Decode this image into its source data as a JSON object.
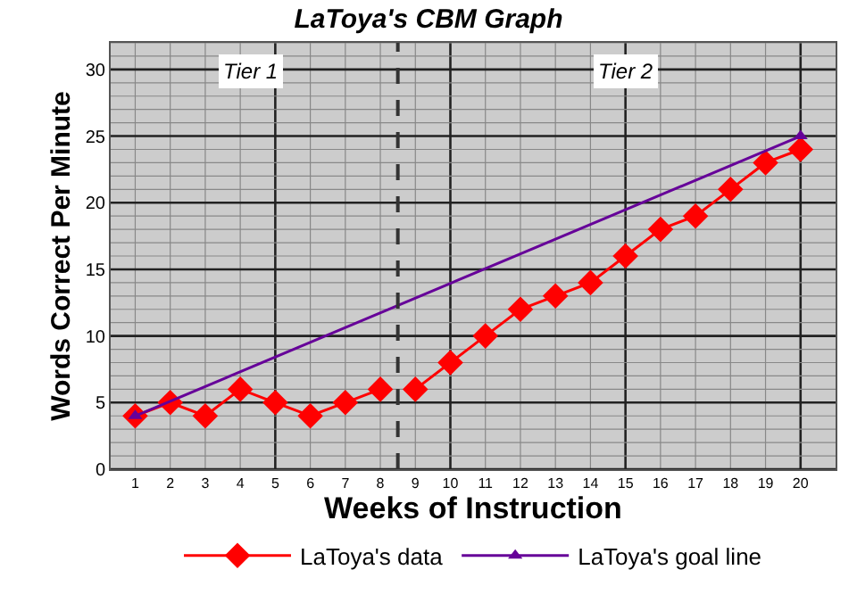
{
  "chart_data": {
    "type": "line",
    "title": "LaToya's CBM Graph",
    "xlabel": "Weeks of Instruction",
    "ylabel": "Words Correct Per Minute",
    "series": [
      {
        "name": "LaToya's data",
        "color": "#ff0000",
        "marker": "diamond",
        "x": [
          1,
          2,
          3,
          4,
          5,
          6,
          7,
          8
        ],
        "values": [
          4,
          5,
          4,
          6,
          5,
          4,
          5,
          6
        ]
      },
      {
        "color": "#ff0000",
        "marker": "diamond",
        "x": [
          9,
          10,
          11,
          12,
          13,
          14,
          15,
          16,
          17,
          18,
          19,
          20
        ],
        "values": [
          6,
          8,
          10,
          12,
          13,
          14,
          16,
          18,
          19,
          21,
          23,
          24
        ]
      },
      {
        "name": "LaToya's goal line",
        "color": "#660099",
        "marker": "triangle",
        "x": [
          1,
          20
        ],
        "values": [
          4,
          25
        ]
      }
    ],
    "xlim": [
      0.3,
      21
    ],
    "xticks": [
      1,
      2,
      3,
      4,
      5,
      6,
      7,
      8,
      9,
      10,
      11,
      12,
      13,
      14,
      15,
      16,
      17,
      18,
      19,
      20
    ],
    "ylim": [
      0,
      32
    ],
    "yticks": [
      0,
      5,
      10,
      15,
      20,
      25,
      30
    ],
    "ref_lines": [
      {
        "axis": "x",
        "value": 8.5,
        "color": "#333333",
        "line_style": "dashed"
      }
    ],
    "annotations": [
      {
        "text": "Tier 1",
        "x": 4.3,
        "y": 29.8
      },
      {
        "text": "Tier 2",
        "x": 15,
        "y": 29.8
      }
    ],
    "grid": true,
    "legend": "bottom"
  }
}
